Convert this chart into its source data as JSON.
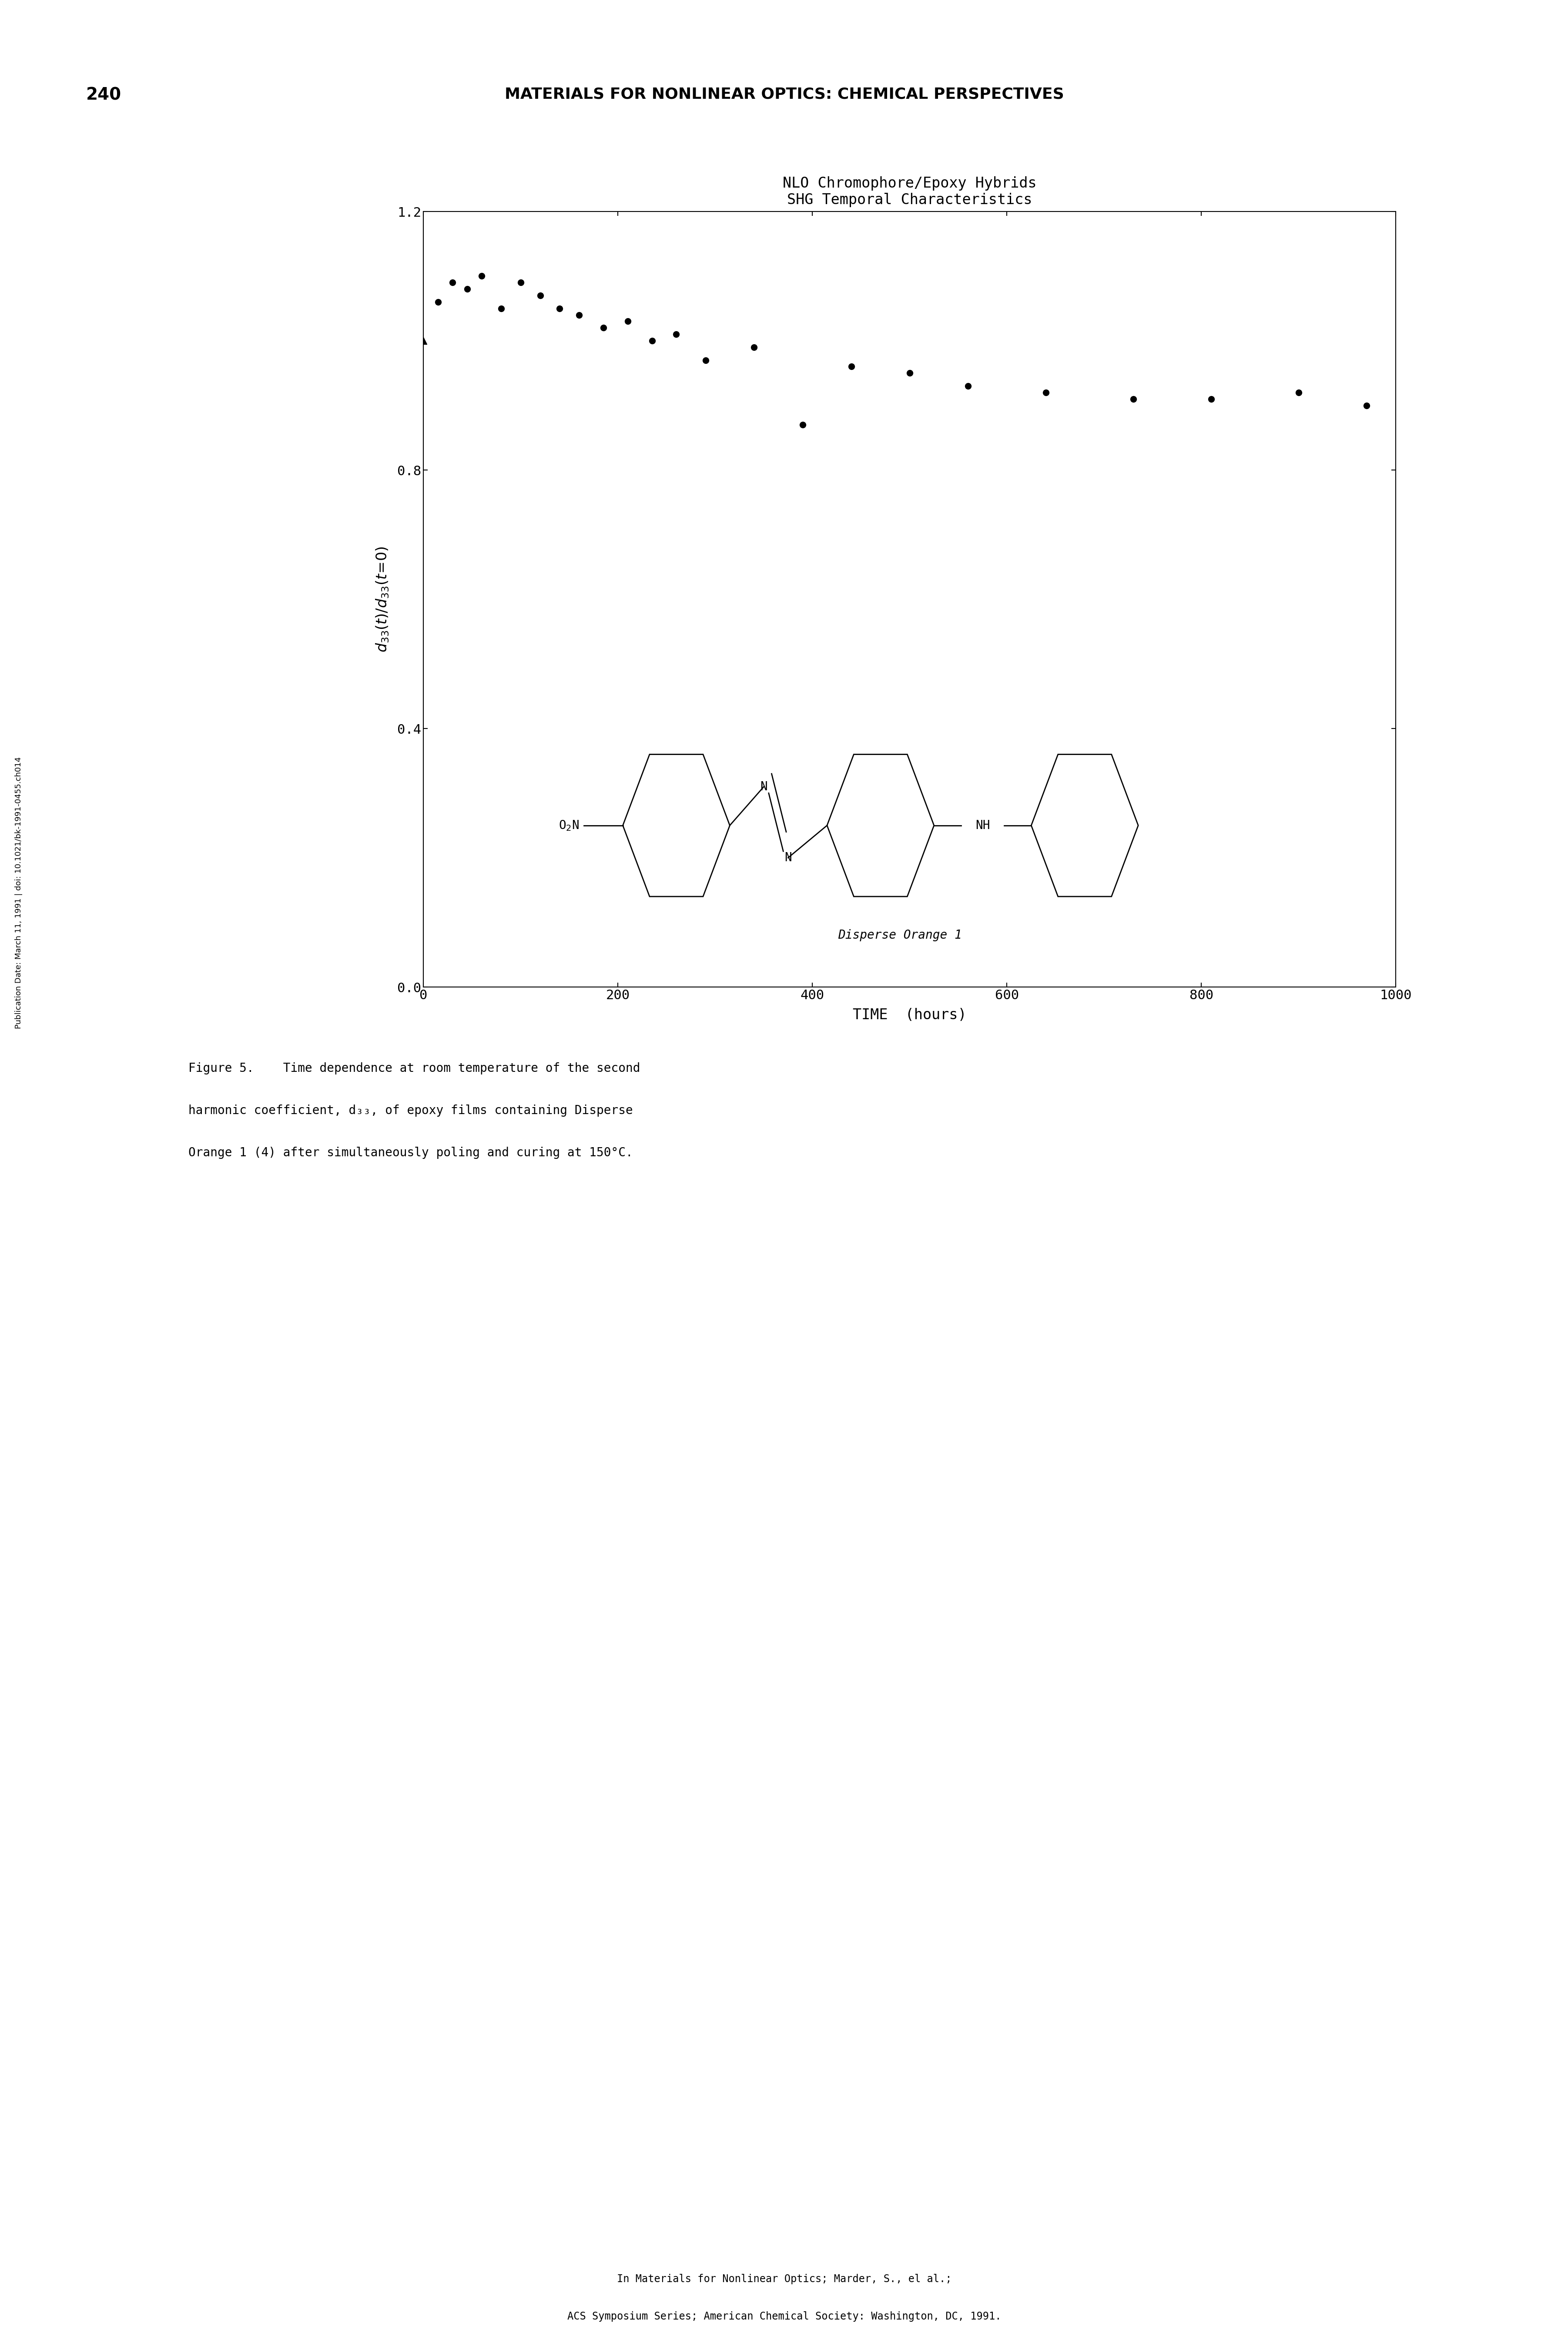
{
  "page_number": "240",
  "header_text": "MATERIALS FOR NONLINEAR OPTICS: CHEMICAL PERSPECTIVES",
  "title_line1": "NLO Chromophore/Epoxy Hybrids",
  "title_line2": "SHG Temporal Characteristics",
  "xlabel": "TIME  (hours)",
  "ylabel": "$d_{33}(t)/d_{33}(t=0)$",
  "xlim": [
    0,
    1000
  ],
  "ylim": [
    0.0,
    1.2
  ],
  "xticks": [
    0,
    200,
    400,
    600,
    800,
    1000
  ],
  "yticks": [
    0.0,
    0.4,
    0.8,
    1.2
  ],
  "data_x": [
    0,
    15,
    30,
    45,
    60,
    80,
    100,
    120,
    140,
    160,
    185,
    210,
    235,
    260,
    290,
    340,
    390,
    440,
    500,
    560,
    640,
    730,
    810,
    900,
    970
  ],
  "data_y": [
    1.0,
    1.06,
    1.09,
    1.08,
    1.1,
    1.05,
    1.09,
    1.07,
    1.05,
    1.04,
    1.02,
    1.03,
    1.0,
    1.01,
    0.97,
    0.99,
    0.87,
    0.96,
    0.95,
    0.93,
    0.92,
    0.91,
    0.91,
    0.92,
    0.9
  ],
  "molecule_label": "Disperse Orange 1",
  "sidebar_text": "Publication Date: March 11, 1991 | doi: 10.1021/bk-1991-0455.ch014",
  "footer_line1": "In Materials for Nonlinear Optics; Marder, S., el al.;",
  "footer_line2": "ACS Symposium Series; American Chemical Society: Washington, DC, 1991.",
  "caption_text": "Figure 5.    Time dependence at room temperature of the second\nharmonic coefficient, d33, of epoxy films containing Disperse\nOrange 1 (4) after simultaneously poling and curing at 150°C.",
  "background_color": "white"
}
